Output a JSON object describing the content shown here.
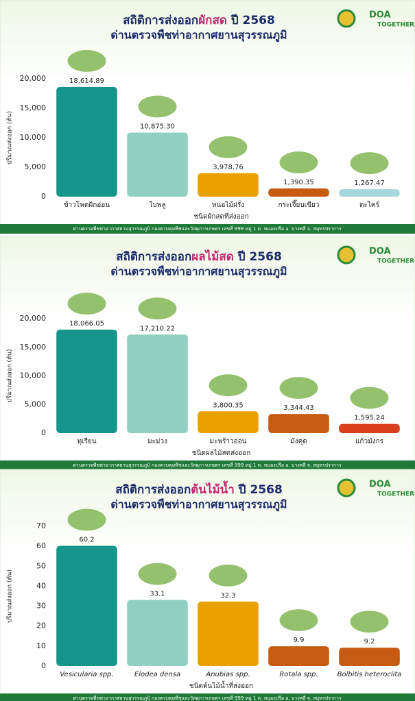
{
  "logo": {
    "text": "DOA",
    "tagline": "TOGETHER"
  },
  "footer": "ด่านตรวจพืชท่าอากาศยานสุวรรณภูมิ กองควบคุมพืชและวัสดุการเกษตร เลขที่ 999 หมู่ 1 ต. หนองปรือ อ. บางพลี จ. สมุทรปราการ",
  "chart_data": [
    {
      "type": "bar",
      "title": [
        "สถิติการส่งออก",
        "ผักสด",
        "ปี 2568"
      ],
      "subtitle": "ด่านตรวจพืชท่าอากาศยานสุวรรณภูมิ",
      "y_label": "ปริมาณส่งออก (ตัน)",
      "x_label": "ชนิดผักสดที่ส่งออก",
      "categories": [
        "ข้าวโพดฝักอ่อน",
        "ใบพลู",
        "หน่อไม้ฝรั่ง",
        "กระเจี๊ยบเขียว",
        "ตะไคร้"
      ],
      "values": [
        18614.89,
        10875.3,
        3978.76,
        1390.35,
        1267.47
      ],
      "value_labels": [
        "18,614.89",
        "10,875.30",
        "3,978.76",
        "1,390.35",
        "1,267.47"
      ],
      "colors": [
        "#16958a",
        "#91d0c1",
        "#e9a100",
        "#c75b12",
        "#a4d8dc"
      ],
      "ylim": [
        0,
        20000
      ],
      "yticks": [
        0,
        {
          "value": 5000,
          "label": "5,000"
        },
        {
          "value": 10000,
          "label": "10,000"
        },
        {
          "value": 15000,
          "label": "15,000"
        },
        {
          "value": 20000,
          "label": "20,000"
        }
      ],
      "grid": false
    },
    {
      "type": "bar",
      "title": [
        "สถิติการส่งออก",
        "ผลไม้สด",
        "ปี 2568"
      ],
      "subtitle": "ด่านตรวจพืชท่าอากาศยานสุวรรณภูมิ",
      "y_label": "ปริมาณส่งออก (ตัน)",
      "x_label": "ชนิดผลไม้สดส่งออก",
      "categories": [
        "ทุเรียน",
        "มะม่วง",
        "มะพร้าวอ่อน",
        "มังคุด",
        "แก้วมังกร"
      ],
      "values": [
        18066.05,
        17210.22,
        3800.35,
        3344.43,
        1595.24
      ],
      "value_labels": [
        "18,066.05",
        "17,210.22",
        "3,800.35",
        "3,344.43",
        "1,595.24"
      ],
      "colors": [
        "#16958a",
        "#91d0c1",
        "#e9a100",
        "#c75b12",
        "#d8401d"
      ],
      "ylim": [
        0,
        20000
      ],
      "yticks": [
        0,
        {
          "value": 5000,
          "label": "5,000"
        },
        {
          "value": 10000,
          "label": "10,000"
        },
        {
          "value": 15000,
          "label": "15,000"
        },
        {
          "value": 20000,
          "label": "20,000"
        }
      ],
      "grid": false
    },
    {
      "type": "bar",
      "title": [
        "สถิติการส่งออก",
        "ต้นไม้น้ำ",
        "ปี 2568"
      ],
      "subtitle": "ด่านตรวจพืชท่าอากาศยานสุวรรณภูมิ",
      "y_label": "ปริมาณส่งออก (ตัน)",
      "x_label": "ชนิดต้นไม้น้ำที่ส่งออก",
      "categories": [
        "Vesicularia spp.",
        "Elodea densa",
        "Anubias spp.",
        "Rotala spp.",
        "Bolbitis heteroclita"
      ],
      "values": [
        60.2,
        33.1,
        32.3,
        9.9,
        9.2
      ],
      "colors": [
        "#16958a",
        "#91d0c1",
        "#e9a100",
        "#c75b12",
        "#c75b12"
      ],
      "ylim": [
        0,
        70
      ],
      "yticks": [
        0,
        10,
        20,
        30,
        40,
        50,
        60,
        70
      ],
      "grid": false,
      "italic_categories": true
    }
  ]
}
